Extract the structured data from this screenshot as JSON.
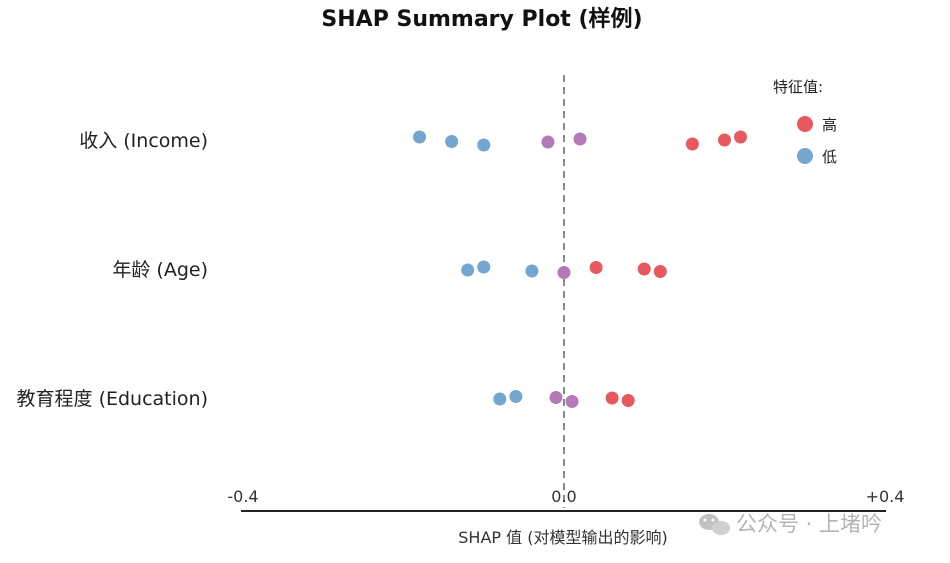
{
  "chart_data": {
    "type": "scatter",
    "title": "SHAP Summary Plot (样例)",
    "xlabel": "SHAP 值 (对模型输出的影响)",
    "xlim": [
      -0.4,
      0.4
    ],
    "x_ticks": [
      "-0.4",
      "0.0",
      "+0.4"
    ],
    "x_tick_values": [
      -0.4,
      0.0,
      0.4
    ],
    "reference_line": 0,
    "features": [
      "收入 (Income)",
      "年龄 (Age)",
      "教育程度 (Education)"
    ],
    "legend": {
      "title": "特征值:",
      "placement": "top-right",
      "items": [
        {
          "label": "高",
          "color": "#e8595f"
        },
        {
          "label": "低",
          "color": "#74a6d0"
        }
      ]
    },
    "colors": {
      "high": "#e8595f",
      "low": "#74a6d0",
      "mid": "#b37ab8"
    },
    "points": [
      {
        "feature": 0,
        "x": -0.18,
        "jitter": -0.06,
        "level": "low"
      },
      {
        "feature": 0,
        "x": -0.14,
        "jitter": 0.03,
        "level": "low"
      },
      {
        "feature": 0,
        "x": -0.1,
        "jitter": 0.1,
        "level": "low"
      },
      {
        "feature": 0,
        "x": -0.02,
        "jitter": 0.04,
        "level": "mid"
      },
      {
        "feature": 0,
        "x": 0.02,
        "jitter": -0.02,
        "level": "mid"
      },
      {
        "feature": 0,
        "x": 0.16,
        "jitter": 0.08,
        "level": "high"
      },
      {
        "feature": 0,
        "x": 0.2,
        "jitter": 0.0,
        "level": "high"
      },
      {
        "feature": 0,
        "x": 0.22,
        "jitter": -0.06,
        "level": "high"
      },
      {
        "feature": 1,
        "x": -0.12,
        "jitter": 0.02,
        "level": "low"
      },
      {
        "feature": 1,
        "x": -0.1,
        "jitter": -0.04,
        "level": "low"
      },
      {
        "feature": 1,
        "x": -0.04,
        "jitter": 0.04,
        "level": "low"
      },
      {
        "feature": 1,
        "x": 0.0,
        "jitter": 0.07,
        "level": "mid"
      },
      {
        "feature": 1,
        "x": 0.04,
        "jitter": -0.03,
        "level": "high"
      },
      {
        "feature": 1,
        "x": 0.1,
        "jitter": 0.0,
        "level": "high"
      },
      {
        "feature": 1,
        "x": 0.12,
        "jitter": 0.05,
        "level": "high"
      },
      {
        "feature": 2,
        "x": -0.08,
        "jitter": 0.02,
        "level": "low"
      },
      {
        "feature": 2,
        "x": -0.06,
        "jitter": -0.03,
        "level": "low"
      },
      {
        "feature": 2,
        "x": -0.01,
        "jitter": -0.01,
        "level": "mid"
      },
      {
        "feature": 2,
        "x": 0.01,
        "jitter": 0.07,
        "level": "mid"
      },
      {
        "feature": 2,
        "x": 0.06,
        "jitter": 0.0,
        "level": "high"
      },
      {
        "feature": 2,
        "x": 0.08,
        "jitter": 0.05,
        "level": "high"
      }
    ]
  },
  "watermark": {
    "text": "公众号 · 上堵吟",
    "icon": "wechat-icon"
  }
}
